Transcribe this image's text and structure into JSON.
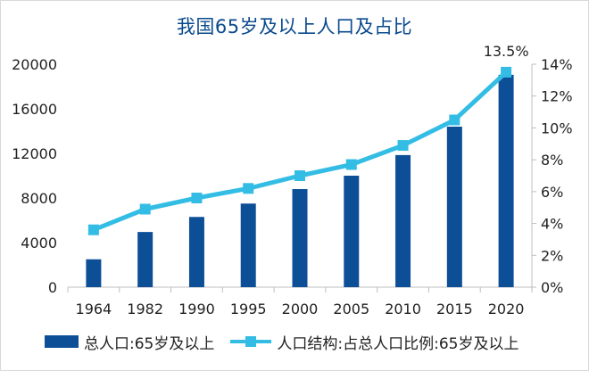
{
  "title": "我国65岁及以上人口及占比",
  "colors": {
    "bar": "#0d4f97",
    "line": "#33bde5",
    "title": "#0a4a8e",
    "axis": "#bfbfbf"
  },
  "chart_data": {
    "type": "bar",
    "categories": [
      "1964",
      "1982",
      "1990",
      "1995",
      "2000",
      "2005",
      "2010",
      "2015",
      "2020"
    ],
    "series": [
      {
        "name": "总人口:65岁及以上",
        "type": "bar",
        "axis": "left",
        "values": [
          2500,
          4950,
          6300,
          7500,
          8800,
          10000,
          11850,
          14400,
          19050
        ]
      },
      {
        "name": "人口结构:占总人口比例:65岁及以上",
        "type": "line",
        "axis": "right",
        "values": [
          3.6,
          4.9,
          5.6,
          6.2,
          7.0,
          7.7,
          8.9,
          10.5,
          13.5
        ]
      }
    ],
    "y_left": {
      "min": 0,
      "max": 20000,
      "ticks": [
        "0",
        "4000",
        "8000",
        "12000",
        "16000",
        "20000"
      ]
    },
    "y_right": {
      "min": 0,
      "max": 14,
      "ticks": [
        "0%",
        "2%",
        "4%",
        "6%",
        "8%",
        "10%",
        "12%",
        "14%"
      ]
    },
    "annotation": "13.5%",
    "grid": true,
    "legend": "bottom"
  }
}
